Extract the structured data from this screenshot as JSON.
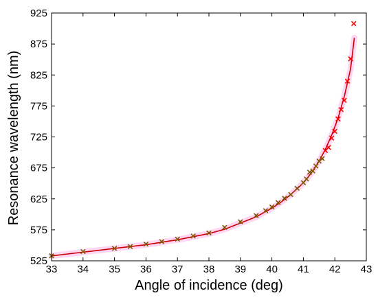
{
  "chart_data": {
    "type": "line",
    "xlabel": "Angle of incidence (deg)",
    "ylabel": "Resonance wavelength (nm)",
    "xlim": [
      33,
      43
    ],
    "ylim": [
      525,
      925
    ],
    "xticks": [
      "33",
      "34",
      "35",
      "36",
      "37",
      "38",
      "39",
      "40",
      "41",
      "42",
      "43"
    ],
    "yticks": [
      "525",
      "575",
      "625",
      "675",
      "725",
      "775",
      "825",
      "875",
      "925"
    ],
    "grid": false,
    "legend": "none",
    "colors": {
      "line": "#cc0000",
      "marker": "#ff0000",
      "marker_overlap": "#7a5a00",
      "band": "#ffc8f0"
    },
    "series": [
      {
        "style": "line",
        "x": [
          33.0,
          34.0,
          35.0,
          36.0,
          37.0,
          38.0,
          38.5,
          39.0,
          39.5,
          40.0,
          40.3,
          40.6,
          40.9,
          41.1,
          41.3,
          41.5,
          41.7,
          41.9,
          42.1,
          42.3,
          42.5,
          42.62
        ],
        "y": [
          533,
          539,
          545,
          551,
          559,
          569,
          576,
          586,
          596,
          610,
          620,
          632,
          646,
          657,
          670,
          686,
          705,
          728,
          755,
          790,
          835,
          885
        ]
      },
      {
        "style": "markers",
        "x": [
          33.0,
          34.0,
          35.0,
          35.5,
          36.0,
          36.5,
          37.0,
          37.5,
          38.0,
          38.5,
          39.0,
          39.5,
          39.8,
          40.0,
          40.2,
          40.4,
          40.6,
          40.8,
          41.0,
          41.1,
          41.2,
          41.3,
          41.4,
          41.5,
          41.6,
          41.7,
          41.8,
          41.9,
          42.0,
          42.1,
          42.2,
          42.3,
          42.4,
          42.5,
          42.6
        ],
        "y": [
          533,
          540,
          545,
          548,
          552,
          556,
          560,
          565,
          570,
          579,
          588,
          598,
          606,
          612,
          619,
          626,
          632,
          642,
          651,
          657,
          668,
          670,
          678,
          686,
          690,
          703,
          708,
          723,
          734,
          754,
          769,
          784,
          815,
          851,
          908
        ]
      }
    ]
  }
}
